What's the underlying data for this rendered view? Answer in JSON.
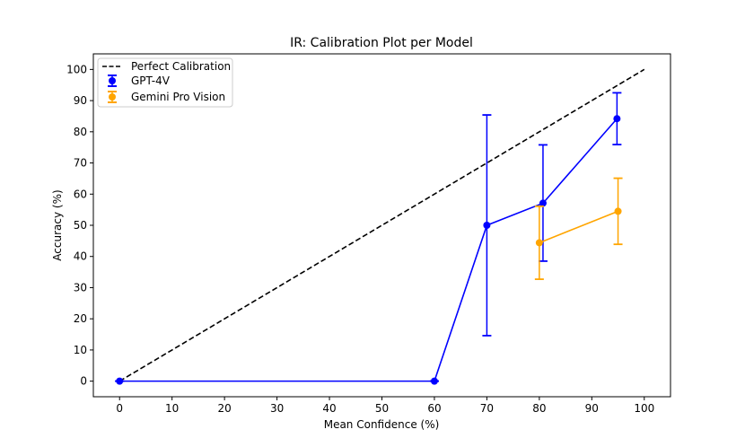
{
  "chart_data": {
    "type": "line",
    "title": "IR: Calibration Plot per Model",
    "xlabel": "Mean Confidence (%)",
    "ylabel": "Accuracy (%)",
    "xlim": [
      -5,
      105
    ],
    "ylim": [
      -5,
      105
    ],
    "xticks": [
      0,
      10,
      20,
      30,
      40,
      50,
      60,
      70,
      80,
      90,
      100
    ],
    "yticks": [
      0,
      10,
      20,
      30,
      40,
      50,
      60,
      70,
      80,
      90,
      100
    ],
    "grid": false,
    "legend_position": "top-left",
    "reference_line": {
      "name": "Perfect Calibration",
      "x": [
        0,
        100
      ],
      "y": [
        0,
        100
      ],
      "color": "#000000",
      "style": "dashed"
    },
    "series": [
      {
        "name": "GPT-4V",
        "color": "#0000ff",
        "x": [
          0,
          60,
          70,
          80.7,
          94.8
        ],
        "y": [
          0,
          0,
          50,
          57.1,
          84.2
        ],
        "yerr_low": [
          0,
          0,
          14.6,
          38.5,
          75.9
        ],
        "yerr_high": [
          0,
          0,
          85.4,
          75.8,
          92.5
        ]
      },
      {
        "name": "Gemini Pro Vision",
        "color": "#ffa500",
        "x": [
          80,
          95
        ],
        "y": [
          44.4,
          54.5
        ],
        "yerr_low": [
          32.7,
          43.9
        ],
        "yerr_high": [
          56.1,
          65.1
        ]
      }
    ]
  }
}
